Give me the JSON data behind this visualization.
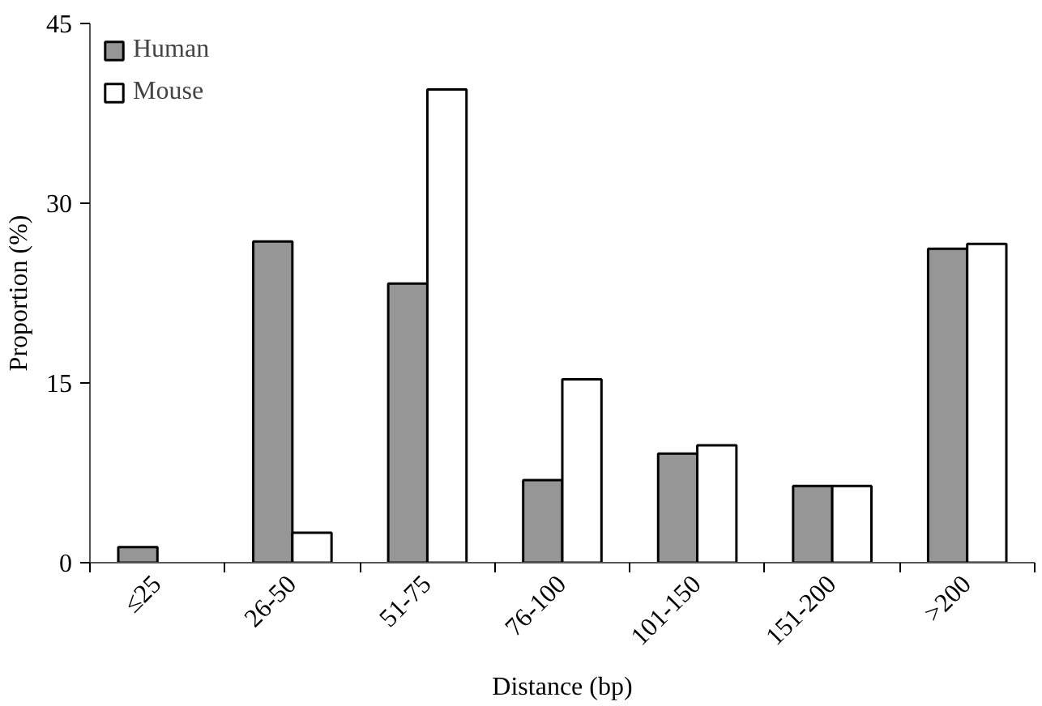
{
  "chart_data": {
    "type": "bar",
    "xlabel": "Distance (bp)",
    "ylabel": "Proportion (%)",
    "categories": [
      "≤25",
      "26-50",
      "51-75",
      "76-100",
      "101-150",
      "151-200",
      ">200"
    ],
    "series": [
      {
        "name": "Human",
        "color": "#969696",
        "values": [
          1.3,
          26.8,
          23.3,
          6.9,
          9.1,
          6.4,
          26.2
        ]
      },
      {
        "name": "Mouse",
        "color": "#ffffff",
        "values": [
          null,
          2.5,
          39.5,
          15.3,
          9.8,
          6.4,
          26.6
        ]
      }
    ],
    "ylim": [
      0,
      45
    ],
    "yticks": [
      0,
      15,
      30,
      45
    ],
    "grid": false,
    "legend": "top left"
  }
}
